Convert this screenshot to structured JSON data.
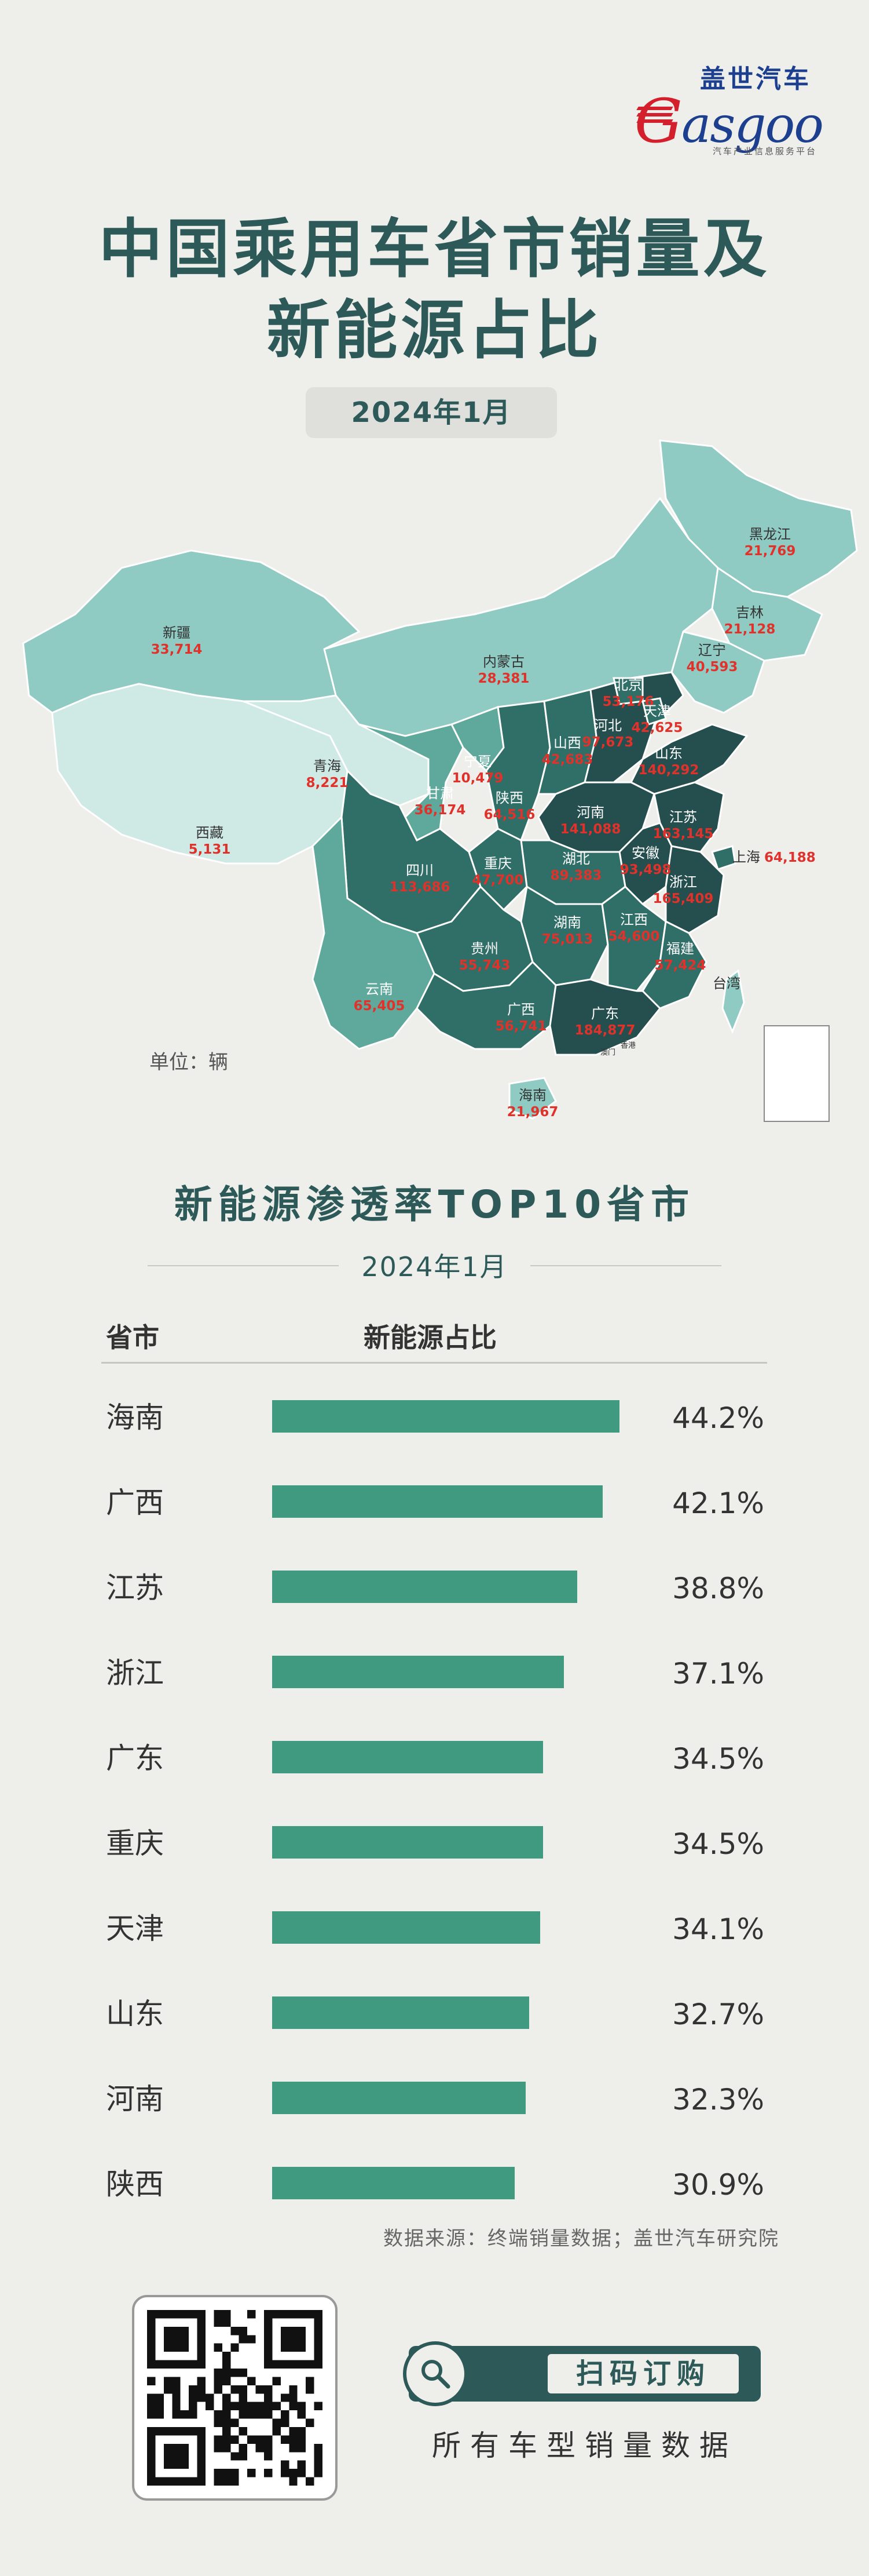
{
  "logo": {
    "cn": "盖世汽车",
    "en_g": "G",
    "en_rest": "asgoo",
    "sub": "汽车产业信息服务平台"
  },
  "title": {
    "line1": "中国乘用车省市销量及",
    "line2": "新能源占比"
  },
  "date": "2024年1月",
  "map": {
    "unit": "单位：辆",
    "colors": {
      "light": "#cfe9e5",
      "mid": "#8fcac3",
      "teal": "#5fa99c",
      "dark": "#2f6f68",
      "darker": "#254f4f",
      "label_red": "#e0312b"
    },
    "provinces": [
      {
        "name": "黑龙江",
        "value": "21,769"
      },
      {
        "name": "吉林",
        "value": "21,128"
      },
      {
        "name": "辽宁",
        "value": "40,593"
      },
      {
        "name": "新疆",
        "value": "33,714"
      },
      {
        "name": "内蒙古",
        "value": "28,381"
      },
      {
        "name": "北京",
        "value": "53,176"
      },
      {
        "name": "天津",
        "value": "42,625"
      },
      {
        "name": "河北",
        "value": "97,673"
      },
      {
        "name": "山西",
        "value": "42,683"
      },
      {
        "name": "山东",
        "value": "140,292"
      },
      {
        "name": "宁夏",
        "value": "10,479"
      },
      {
        "name": "青海",
        "value": "8,221"
      },
      {
        "name": "甘肃",
        "value": "36,174"
      },
      {
        "name": "陕西",
        "value": "64,516"
      },
      {
        "name": "河南",
        "value": "141,088"
      },
      {
        "name": "江苏",
        "value": "163,145"
      },
      {
        "name": "上海",
        "value": "64,188"
      },
      {
        "name": "西藏",
        "value": "5,131"
      },
      {
        "name": "四川",
        "value": "113,686"
      },
      {
        "name": "重庆",
        "value": "47,700"
      },
      {
        "name": "湖北",
        "value": "89,383"
      },
      {
        "name": "安徽",
        "value": "93,498"
      },
      {
        "name": "浙江",
        "value": "165,409"
      },
      {
        "name": "湖南",
        "value": "75,013"
      },
      {
        "name": "江西",
        "value": "54,600"
      },
      {
        "name": "贵州",
        "value": "55,743"
      },
      {
        "name": "福建",
        "value": "57,424"
      },
      {
        "name": "云南",
        "value": "65,405"
      },
      {
        "name": "广西",
        "value": "56,741"
      },
      {
        "name": "广东",
        "value": "184,877"
      },
      {
        "name": "海南",
        "value": "21,967"
      },
      {
        "name": "台湾",
        "value": ""
      },
      {
        "name": "香港",
        "value": ""
      },
      {
        "name": "澳门",
        "value": ""
      }
    ]
  },
  "ranking": {
    "title": "新能源渗透率TOP10省市",
    "date": "2024年1月",
    "col_province": "省市",
    "col_ratio": "新能源占比",
    "bar_color": "#3f9a80"
  },
  "chart_data": {
    "type": "bar",
    "title": "新能源渗透率TOP10省市",
    "xlabel": "省市",
    "ylabel": "新能源占比",
    "categories": [
      "海南",
      "广西",
      "江苏",
      "浙江",
      "广东",
      "重庆",
      "天津",
      "山东",
      "河南",
      "陕西"
    ],
    "values": [
      44.2,
      42.1,
      38.8,
      37.1,
      34.5,
      34.5,
      34.1,
      32.7,
      32.3,
      30.9
    ],
    "labels": [
      "44.2%",
      "42.1%",
      "38.8%",
      "37.1%",
      "34.5%",
      "34.5%",
      "34.1%",
      "32.7%",
      "32.3%",
      "30.9%"
    ],
    "ylim": [
      0,
      44.2
    ]
  },
  "source": "数据来源：终端销量数据；盖世汽车研究院",
  "cta": {
    "button": "扫码订购",
    "sub": "所有车型销量数据"
  }
}
